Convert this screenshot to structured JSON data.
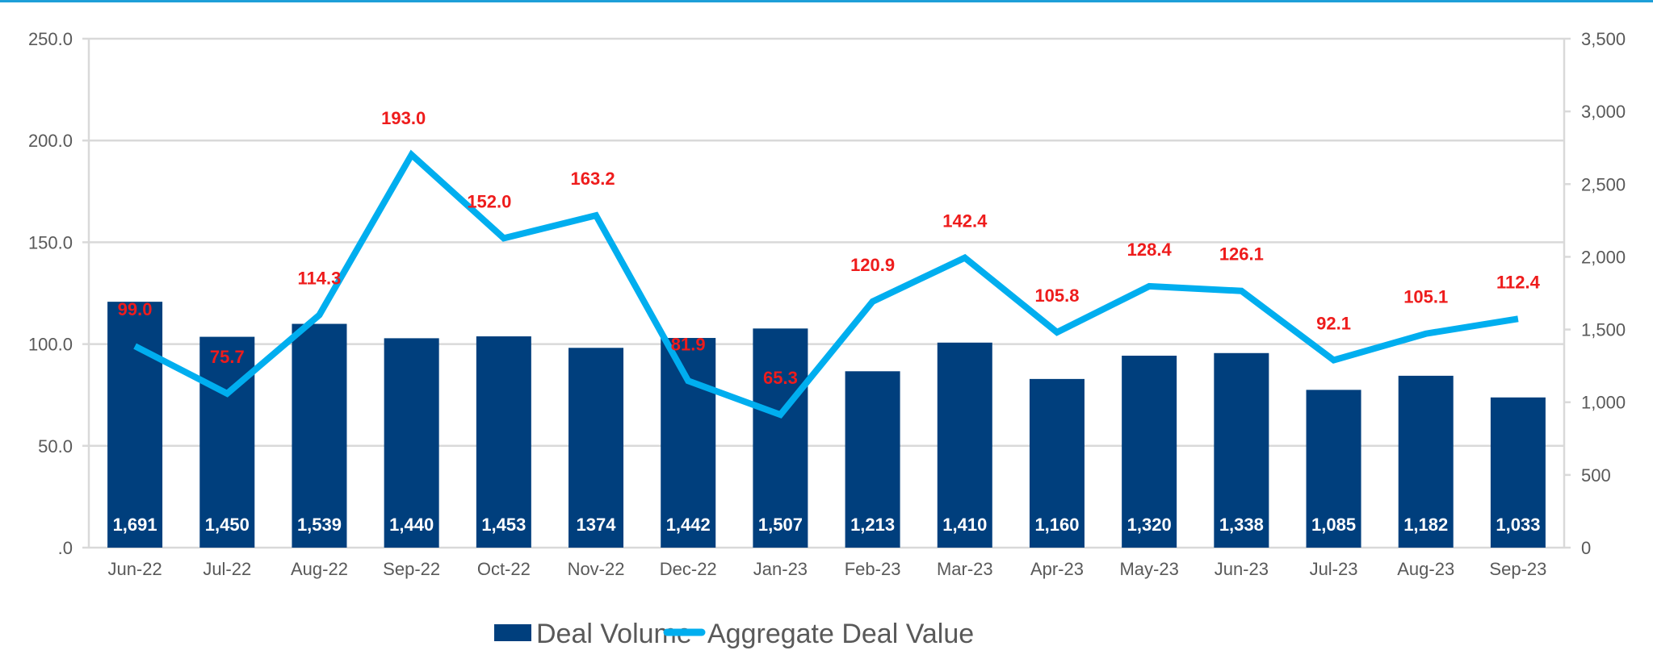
{
  "chart_data": {
    "type": "bar+line",
    "title": "",
    "categories": [
      "Jun-22",
      "Jul-22",
      "Aug-22",
      "Sep-22",
      "Oct-22",
      "Nov-22",
      "Dec-22",
      "Jan-23",
      "Feb-23",
      "Mar-23",
      "Apr-23",
      "May-23",
      "Jun-23",
      "Jul-23",
      "Aug-23",
      "Sep-23"
    ],
    "series": [
      {
        "name": "Deal Volume",
        "type": "bar",
        "axis": "right",
        "color": "#003f7d",
        "values": [
          1691,
          1450,
          1539,
          1440,
          1453,
          1374,
          1442,
          1507,
          1213,
          1410,
          1160,
          1320,
          1338,
          1085,
          1182,
          1033
        ],
        "labels": [
          "1,691",
          "1,450",
          "1,539",
          "1,440",
          "1,453",
          "1374",
          "1,442",
          "1,507",
          "1,213",
          "1,410",
          "1,160",
          "1,320",
          "1,338",
          "1,085",
          "1,182",
          "1,033"
        ]
      },
      {
        "name": "Aggregate Deal Value",
        "type": "line",
        "axis": "left",
        "color": "#00aeef",
        "label_color": "#ee1c1c",
        "values": [
          99.0,
          75.7,
          114.3,
          193.0,
          152.0,
          163.2,
          81.9,
          65.3,
          120.9,
          142.4,
          105.8,
          128.4,
          126.1,
          92.1,
          105.1,
          112.4
        ],
        "labels": [
          "99.0",
          "75.7",
          "114.3",
          "193.0",
          "152.0",
          "163.2",
          "81.9",
          "65.3",
          "120.9",
          "142.4",
          "105.8",
          "128.4",
          "126.1",
          "92.1",
          "105.1",
          "112.4"
        ]
      }
    ],
    "left_axis": {
      "range": [
        0,
        250
      ],
      "ticks": [
        ".0",
        "50.0",
        "100.0",
        "150.0",
        "200.0",
        "250.0"
      ],
      "tick_values": [
        0,
        50,
        100,
        150,
        200,
        250
      ]
    },
    "right_axis": {
      "range": [
        0,
        3500
      ],
      "ticks": [
        "0",
        "500",
        "1,000",
        "1,500",
        "2,000",
        "2,500",
        "3,000",
        "3,500"
      ],
      "tick_values": [
        0,
        500,
        1000,
        1500,
        2000,
        2500,
        3000,
        3500
      ]
    },
    "grid": true,
    "legend_position": "bottom",
    "legend": [
      "Deal Volume",
      "Aggregate Deal Value"
    ]
  }
}
